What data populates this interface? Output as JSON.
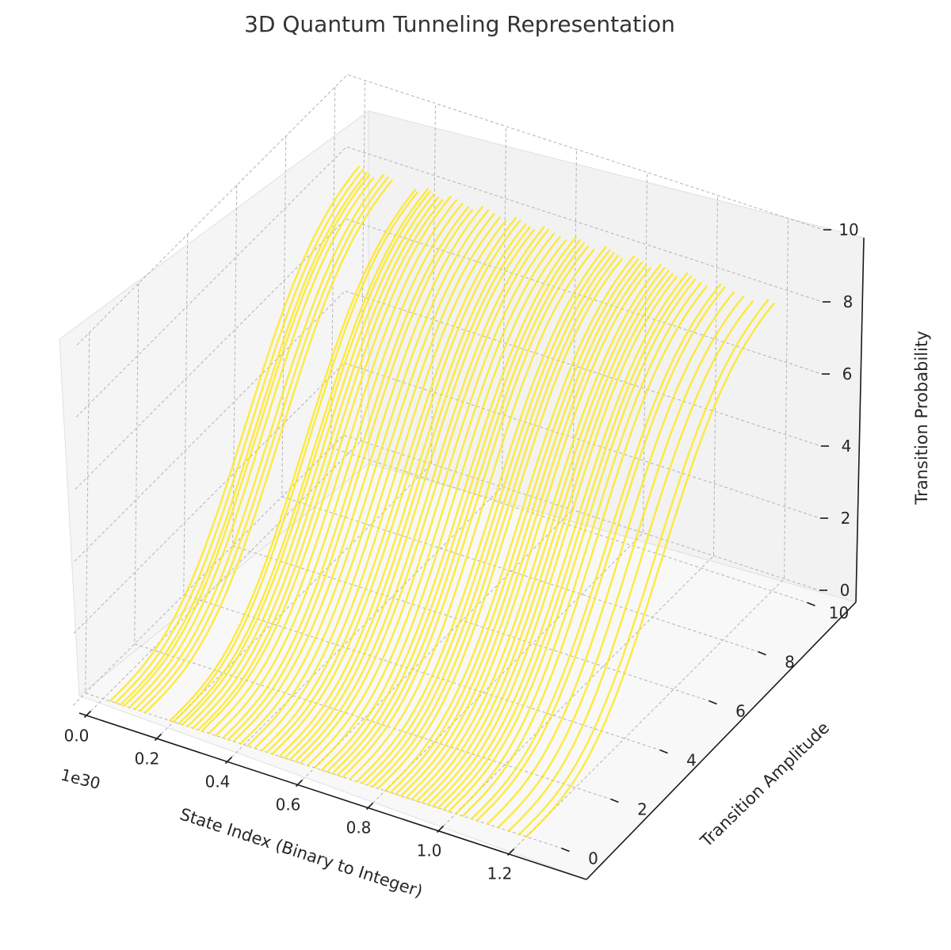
{
  "chart_data": {
    "type": "line",
    "title": "3D Quantum Tunneling Representation",
    "xlabel": "State Index (Binary to Integer)",
    "ylabel": "Transition Amplitude",
    "zlabel": "Transition Probability",
    "x_offset_label": "1e30",
    "x_ticks": [
      "0.0",
      "0.2",
      "0.4",
      "0.6",
      "0.8",
      "1.0",
      "1.2"
    ],
    "y_ticks": [
      "0",
      "2",
      "4",
      "6",
      "8",
      "10"
    ],
    "z_ticks": [
      "0",
      "2",
      "4",
      "6",
      "8",
      "10"
    ],
    "xlim": [
      -0.05,
      1.3
    ],
    "ylim": [
      -0.5,
      10.5
    ],
    "zlim": [
      0,
      10
    ],
    "grid": true,
    "series_color": "#ffe600",
    "series_shape": "Each series is a curve starting near z=0 at y=0 and rising to a plateau near z≈8 at y≈10",
    "series_x_values_e30": [
      0.02,
      0.035,
      0.05,
      0.06,
      0.075,
      0.09,
      0.105,
      0.12,
      0.19,
      0.2,
      0.215,
      0.225,
      0.24,
      0.255,
      0.27,
      0.28,
      0.3,
      0.32,
      0.34,
      0.355,
      0.37,
      0.39,
      0.41,
      0.43,
      0.45,
      0.465,
      0.48,
      0.5,
      0.515,
      0.53,
      0.545,
      0.56,
      0.58,
      0.6,
      0.62,
      0.635,
      0.65,
      0.665,
      0.68,
      0.7,
      0.72,
      0.735,
      0.75,
      0.765,
      0.78,
      0.8,
      0.815,
      0.83,
      0.845,
      0.86,
      0.875,
      0.89,
      0.905,
      0.92,
      0.935,
      0.95,
      0.965,
      0.98,
      1.0,
      1.02,
      1.045,
      1.06,
      1.09,
      1.12,
      1.15,
      1.18,
      1.2
    ]
  }
}
